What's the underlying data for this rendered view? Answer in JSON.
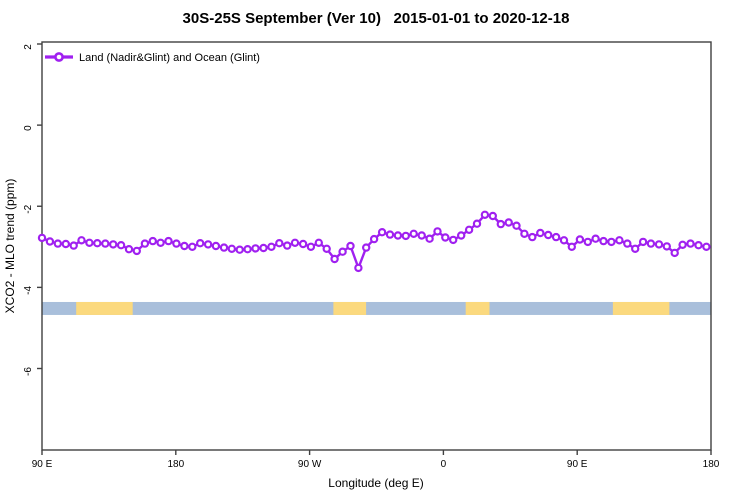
{
  "chart_data": {
    "type": "line",
    "title": "30S-25S September (Ver 10)   2015-01-01 to 2020-12-18",
    "xlabel": "Longitude (deg E)",
    "ylabel": "XCO2 - MLO trend (ppm)",
    "ylim": [
      -8.0,
      2.05
    ],
    "x_axis_note": "longitude axis spans 450 deg eastward starting at 90E (wraps past dateline)",
    "x_ticks": [
      {
        "deg": 0,
        "label": "90 E"
      },
      {
        "deg": 90,
        "label": "180"
      },
      {
        "deg": 180,
        "label": "90 W"
      },
      {
        "deg": 270,
        "label": "0"
      },
      {
        "deg": 360,
        "label": "90 E"
      },
      {
        "deg": 450,
        "label": "180"
      }
    ],
    "y_ticks": [
      {
        "value": 2,
        "label": "2"
      },
      {
        "value": 0,
        "label": "0"
      },
      {
        "value": -2,
        "label": "-2"
      },
      {
        "value": -4,
        "label": "-4"
      },
      {
        "value": -6,
        "label": "-6"
      }
    ],
    "grid": false,
    "legend_position": "top-left-inside",
    "axis_color": "#404040",
    "series": [
      {
        "name": "Land (Nadir&Glint) and Ocean (Glint)",
        "color": "#a020f0",
        "marker": "open-circle",
        "x_deg": [
          0,
          5.3,
          10.6,
          16,
          21.3,
          26.6,
          31.9,
          37.2,
          42.6,
          47.9,
          53.2,
          58.5,
          63.8,
          69.2,
          74.5,
          79.8,
          85.1,
          90.4,
          95.8,
          101.1,
          106.4,
          111.7,
          117,
          122.4,
          127.7,
          133,
          138.3,
          143.6,
          149,
          154.3,
          159.6,
          164.9,
          170.2,
          175.6,
          180.9,
          186.2,
          191.5,
          196.8,
          202.2,
          207.5,
          212.8,
          218.1,
          223.4,
          228.8,
          234.1,
          239.4,
          244.7,
          250,
          255.4,
          260.7,
          266,
          271.3,
          276.6,
          282,
          287.3,
          292.6,
          297.9,
          303.2,
          308.6,
          313.9,
          319.2,
          324.5,
          329.8,
          335.2,
          340.5,
          345.8,
          351.1,
          356.4,
          361.8,
          367.1,
          372.4,
          377.7,
          383,
          388.4,
          393.7,
          399,
          404.3,
          409.6,
          415,
          420.3,
          425.6,
          430.9,
          436.2,
          441.6,
          446.9
        ],
        "values": [
          -2.78,
          -2.87,
          -2.92,
          -2.93,
          -2.97,
          -2.84,
          -2.9,
          -2.91,
          -2.92,
          -2.94,
          -2.96,
          -3.06,
          -3.1,
          -2.92,
          -2.86,
          -2.9,
          -2.86,
          -2.92,
          -2.98,
          -3,
          -2.91,
          -2.94,
          -2.98,
          -3.02,
          -3.05,
          -3.07,
          -3.06,
          -3.04,
          -3.03,
          -3,
          -2.91,
          -2.97,
          -2.9,
          -2.93,
          -3,
          -2.9,
          -3.05,
          -3.3,
          -3.12,
          -2.98,
          -3.52,
          -3.02,
          -2.81,
          -2.64,
          -2.7,
          -2.72,
          -2.73,
          -2.68,
          -2.72,
          -2.8,
          -2.62,
          -2.77,
          -2.83,
          -2.72,
          -2.58,
          -2.43,
          -2.21,
          -2.24,
          -2.44,
          -2.4,
          -2.48,
          -2.68,
          -2.76,
          -2.66,
          -2.71,
          -2.76,
          -2.84,
          -3,
          -2.82,
          -2.88,
          -2.8,
          -2.86,
          -2.88,
          -2.84,
          -2.92,
          -3.05,
          -2.88,
          -2.92,
          -2.94,
          -2.99,
          -3.15,
          -2.95,
          -2.92,
          -2.96,
          -3
        ]
      }
    ],
    "surface_band": {
      "description": "ocean/land strip",
      "y_top_ppm": -4.36,
      "y_bottom_ppm": -4.68,
      "ocean_color": "#a9bfdb",
      "land_color": "#fbd97e",
      "land_segments_deg": [
        [
          23,
          61
        ],
        [
          196,
          218
        ],
        [
          285,
          301
        ],
        [
          384,
          422
        ]
      ]
    }
  }
}
